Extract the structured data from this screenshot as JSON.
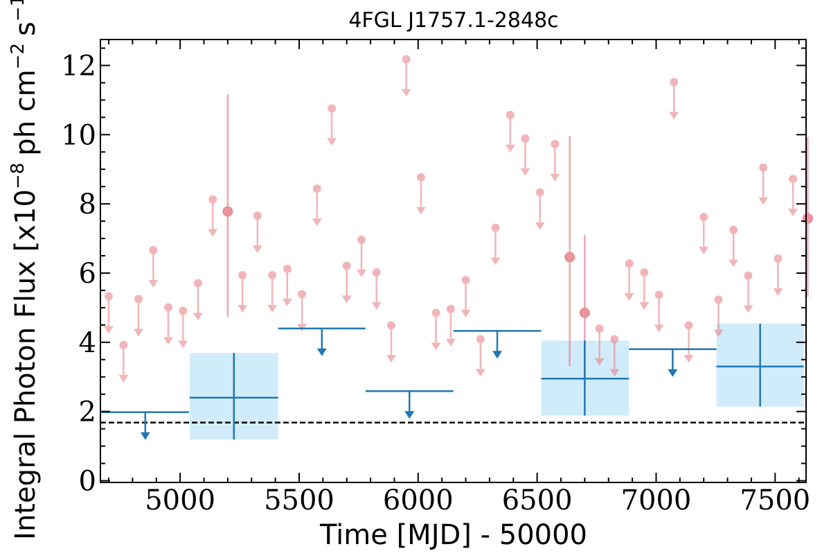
{
  "chart_data": {
    "type": "scatter",
    "title": "4FGL J1757.1-2848c",
    "xlabel": "Time [MJD] - 50000",
    "ylabel": "Integral Photon Flux [x10",
    "ylabel_unit_a": "ph cm",
    "ylabel_unit_b": "s",
    "ylabel_exp1": "−8",
    "ylabel_exp2": "−2",
    "ylabel_exp3": "−1",
    "ylabel_close": "]",
    "xlim": [
      4665,
      7630
    ],
    "ylim": [
      -0.05,
      12.75
    ],
    "x_ticks": [
      5000,
      5500,
      6000,
      6500,
      7000,
      7500
    ],
    "x_tick_labels": [
      "5000",
      "5500",
      "6000",
      "6500",
      "7000",
      "7500"
    ],
    "y_ticks": [
      0,
      2,
      4,
      6,
      8,
      10,
      12
    ],
    "y_tick_labels": [
      "0",
      "2",
      "4",
      "6",
      "8",
      "10",
      "12"
    ],
    "reference_line": {
      "y": 1.68,
      "style": "dashed",
      "color": "#000000"
    },
    "colors": {
      "short_bins": "#e8848c",
      "long_bins": "#1f77b4",
      "band": "#d0ecfa"
    },
    "short_bins_upper_limits": [
      {
        "x": 4700,
        "y": 5.33
      },
      {
        "x": 4762,
        "y": 3.92
      },
      {
        "x": 4825,
        "y": 5.25
      },
      {
        "x": 4887,
        "y": 6.66
      },
      {
        "x": 4950,
        "y": 5.01
      },
      {
        "x": 5012,
        "y": 4.91
      },
      {
        "x": 5075,
        "y": 5.71
      },
      {
        "x": 5137,
        "y": 8.13
      },
      {
        "x": 5262,
        "y": 5.94
      },
      {
        "x": 5325,
        "y": 7.66
      },
      {
        "x": 5387,
        "y": 5.94
      },
      {
        "x": 5450,
        "y": 6.12
      },
      {
        "x": 5512,
        "y": 5.39
      },
      {
        "x": 5575,
        "y": 8.44
      },
      {
        "x": 5637,
        "y": 10.76
      },
      {
        "x": 5700,
        "y": 6.21
      },
      {
        "x": 5762,
        "y": 6.96
      },
      {
        "x": 5825,
        "y": 6.02
      },
      {
        "x": 5887,
        "y": 4.49
      },
      {
        "x": 5950,
        "y": 12.18
      },
      {
        "x": 6012,
        "y": 8.77
      },
      {
        "x": 6075,
        "y": 4.85
      },
      {
        "x": 6137,
        "y": 4.96
      },
      {
        "x": 6200,
        "y": 5.8
      },
      {
        "x": 6262,
        "y": 4.09
      },
      {
        "x": 6325,
        "y": 7.31
      },
      {
        "x": 6387,
        "y": 10.57
      },
      {
        "x": 6450,
        "y": 9.89
      },
      {
        "x": 6512,
        "y": 8.33
      },
      {
        "x": 6575,
        "y": 9.73
      },
      {
        "x": 6762,
        "y": 4.4
      },
      {
        "x": 6825,
        "y": 4.09
      },
      {
        "x": 6887,
        "y": 6.28
      },
      {
        "x": 6950,
        "y": 6.02
      },
      {
        "x": 7012,
        "y": 5.37
      },
      {
        "x": 7075,
        "y": 11.52
      },
      {
        "x": 7137,
        "y": 4.49
      },
      {
        "x": 7200,
        "y": 7.62
      },
      {
        "x": 7262,
        "y": 5.23
      },
      {
        "x": 7325,
        "y": 7.25
      },
      {
        "x": 7387,
        "y": 5.93
      },
      {
        "x": 7450,
        "y": 9.05
      },
      {
        "x": 7512,
        "y": 6.42
      },
      {
        "x": 7575,
        "y": 8.72
      }
    ],
    "short_bins_detections": [
      {
        "x": 5200,
        "y": 7.78,
        "y_err_low": 4.74,
        "y_err_high": 11.17
      },
      {
        "x": 6637,
        "y": 6.46,
        "y_err_low": 3.31,
        "y_err_high": 9.96
      },
      {
        "x": 6700,
        "y": 4.85,
        "y_err_low": 2.76,
        "y_err_high": 7.1
      },
      {
        "x": 7637,
        "y": 7.58,
        "y_err_low": 5.31,
        "y_err_high": 9.93
      }
    ],
    "long_bins_upper_limits": [
      {
        "x_start": 4670,
        "x_end": 5037,
        "y": 1.98
      },
      {
        "x_start": 5412,
        "x_end": 5779,
        "y": 4.4
      },
      {
        "x_start": 5779,
        "x_end": 6148,
        "y": 2.59
      },
      {
        "x_start": 6148,
        "x_end": 6517,
        "y": 4.33
      },
      {
        "x_start": 6886,
        "x_end": 7253,
        "y": 3.8
      }
    ],
    "long_bins_detections": [
      {
        "x_start": 5040,
        "x_end": 5412,
        "x": 5226,
        "y": 2.4,
        "y_low": 1.19,
        "y_high": 3.69
      },
      {
        "x_start": 6517,
        "x_end": 6886,
        "x": 6700,
        "y": 2.95,
        "y_low": 1.88,
        "y_high": 4.05
      },
      {
        "x_start": 7253,
        "x_end": 7620,
        "x": 7437,
        "y": 3.3,
        "y_low": 2.14,
        "y_high": 4.54
      }
    ]
  }
}
